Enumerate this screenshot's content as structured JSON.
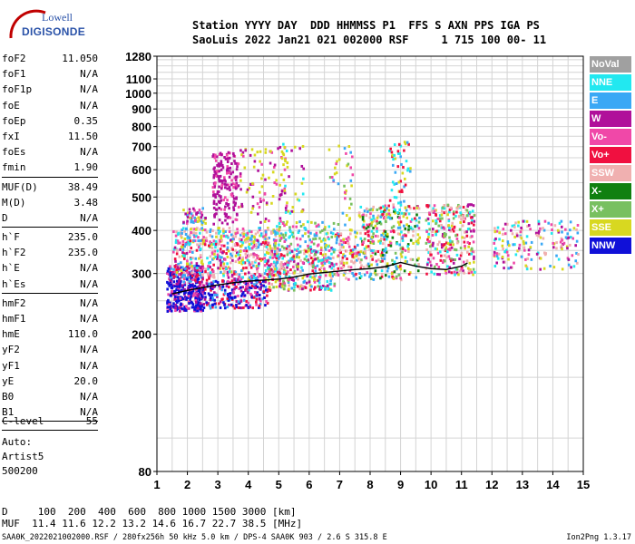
{
  "logo": {
    "line1": "Lowell",
    "line2": "DIGISONDE"
  },
  "header": {
    "line1": "Station YYYY DAY  DDD HHMMSS P1  FFS S AXN PPS IGA PS",
    "line2": "SaoLuis 2022 Jan21 021 002000 RSF     1 715 100 00- 11"
  },
  "params_group1": [
    {
      "label": "foF2",
      "value": "11.050"
    },
    {
      "label": "foF1",
      "value": "N/A"
    },
    {
      "label": "foF1p",
      "value": "N/A"
    },
    {
      "label": "foE",
      "value": "N/A"
    },
    {
      "label": "foEp",
      "value": "0.35"
    },
    {
      "label": "fxI",
      "value": "11.50"
    },
    {
      "label": "foEs",
      "value": "N/A"
    },
    {
      "label": "fmin",
      "value": "1.90"
    }
  ],
  "params_group2": [
    {
      "label": "MUF(D)",
      "value": "38.49"
    },
    {
      "label": "M(D)",
      "value": "3.48"
    },
    {
      "label": "D",
      "value": "N/A"
    }
  ],
  "params_group3": [
    {
      "label": "h`F",
      "value": "235.0"
    },
    {
      "label": "h`F2",
      "value": "235.0"
    },
    {
      "label": "h`E",
      "value": "N/A"
    },
    {
      "label": "h`Es",
      "value": "N/A"
    }
  ],
  "params_group4": [
    {
      "label": "hmF2",
      "value": "N/A"
    },
    {
      "label": "hmF1",
      "value": "N/A"
    },
    {
      "label": "hmE",
      "value": "110.0"
    },
    {
      "label": "yF2",
      "value": "N/A"
    },
    {
      "label": "yF1",
      "value": "N/A"
    },
    {
      "label": "yE",
      "value": "20.0"
    },
    {
      "label": "B0",
      "value": "N/A"
    },
    {
      "label": "B1",
      "value": "N/A"
    }
  ],
  "c_level": {
    "label": "C-level",
    "value": "55"
  },
  "auto": {
    "line1": "Auto:",
    "line2": "Artist5",
    "line3": "500200"
  },
  "legend": [
    {
      "label": "NoVal",
      "color": "#a0a0a0"
    },
    {
      "label": "NNE",
      "color": "#22e8f0"
    },
    {
      "label": "E",
      "color": "#3aa8f5"
    },
    {
      "label": "W",
      "color": "#b0109a"
    },
    {
      "label": "Vo-",
      "color": "#f048a8"
    },
    {
      "label": "Vo+",
      "color": "#f01040"
    },
    {
      "label": "SSW",
      "color": "#f0b0b0"
    },
    {
      "label": "X-",
      "color": "#108010"
    },
    {
      "label": "X+",
      "color": "#78c060"
    },
    {
      "label": "SSE",
      "color": "#d8d820"
    },
    {
      "label": "NNW",
      "color": "#1010d8"
    }
  ],
  "bottom": {
    "d_row": "D     100  200  400  600  800 1000 1500 3000 [km]",
    "muf_row": "MUF  11.4 11.6 12.2 13.2 14.6 16.7 22.7 38.5 [MHz]"
  },
  "footer": {
    "left": "SAA0K_2022021002000.RSF / 280fx256h 50 kHz 5.0 km / DPS-4 SAA0K 903 / 2.6 S 315.8 E",
    "right": "Ion2Png 1.3.17"
  },
  "chart_data": {
    "type": "scatter",
    "title": "",
    "xlabel": "",
    "ylabel": "",
    "xlim": [
      1,
      15
    ],
    "ylim": [
      80,
      1280
    ],
    "x_ticks": [
      1,
      2,
      3,
      4,
      5,
      6,
      7,
      8,
      9,
      10,
      11,
      12,
      13,
      14,
      15
    ],
    "y_ticks": [
      80,
      200,
      300,
      400,
      500,
      600,
      700,
      800,
      900,
      1000,
      1100,
      1280
    ],
    "y_scale": "log",
    "grid": true,
    "clusters": [
      {
        "x": [
          1.3,
          2.5
        ],
        "y": [
          235,
          285
        ],
        "n": 260,
        "colors": [
          10,
          10,
          10,
          3,
          4
        ]
      },
      {
        "x": [
          1.3,
          2.5
        ],
        "y": [
          285,
          320
        ],
        "n": 160,
        "colors": [
          10,
          4,
          3,
          5,
          2
        ]
      },
      {
        "x": [
          2.5,
          4.6
        ],
        "y": [
          240,
          290
        ],
        "n": 240,
        "colors": [
          10,
          10,
          3,
          4,
          5,
          2
        ]
      },
      {
        "x": [
          1.5,
          5.0
        ],
        "y": [
          290,
          380
        ],
        "n": 420,
        "colors": [
          4,
          3,
          5,
          9,
          2,
          1,
          6
        ]
      },
      {
        "x": [
          1.5,
          5.0
        ],
        "y": [
          380,
          410
        ],
        "n": 140,
        "colors": [
          9,
          2,
          1,
          4,
          6
        ]
      },
      {
        "x": [
          1.8,
          2.6
        ],
        "y": [
          420,
          470
        ],
        "n": 50,
        "colors": [
          3,
          4,
          9,
          2
        ]
      },
      {
        "x": [
          4.6,
          6.8
        ],
        "y": [
          270,
          360
        ],
        "n": 330,
        "colors": [
          4,
          9,
          3,
          5,
          6,
          2,
          1,
          8
        ]
      },
      {
        "x": [
          4.8,
          6.8
        ],
        "y": [
          360,
          430
        ],
        "n": 110,
        "colors": [
          9,
          2,
          4,
          8,
          1
        ]
      },
      {
        "x": [
          2.8,
          3.6
        ],
        "y": [
          420,
          680
        ],
        "n": 180,
        "colors": [
          3,
          4,
          3,
          3
        ]
      },
      {
        "x": [
          3.6,
          5.3
        ],
        "y": [
          420,
          700
        ],
        "n": 90,
        "colors": [
          3,
          4,
          9
        ]
      },
      {
        "x": [
          5.0,
          5.8
        ],
        "y": [
          450,
          720
        ],
        "n": 40,
        "colors": [
          3,
          1,
          9
        ]
      },
      {
        "x": [
          6.6,
          7.4
        ],
        "y": [
          400,
          720
        ],
        "n": 40,
        "colors": [
          9,
          8,
          2,
          4
        ]
      },
      {
        "x": [
          6.8,
          7.6
        ],
        "y": [
          290,
          400
        ],
        "n": 90,
        "colors": [
          4,
          5,
          9,
          2,
          6
        ]
      },
      {
        "x": [
          7.6,
          9.6
        ],
        "y": [
          290,
          480
        ],
        "n": 340,
        "colors": [
          4,
          5,
          9,
          2,
          6,
          1,
          7,
          8
        ]
      },
      {
        "x": [
          8.6,
          9.3
        ],
        "y": [
          480,
          730
        ],
        "n": 50,
        "colors": [
          9,
          2,
          1,
          5
        ]
      },
      {
        "x": [
          9.8,
          11.4
        ],
        "y": [
          300,
          480
        ],
        "n": 280,
        "colors": [
          4,
          5,
          9,
          8,
          3,
          6,
          1
        ]
      },
      {
        "x": [
          12.0,
          14.8
        ],
        "y": [
          310,
          430
        ],
        "n": 180,
        "colors": [
          4,
          3,
          2,
          1,
          9,
          6
        ]
      }
    ],
    "trace": {
      "name": "",
      "x": [
        1.5,
        2,
        2.5,
        3,
        3.5,
        4,
        4.5,
        5,
        5.5,
        6,
        6.5,
        7,
        7.5,
        8,
        8.5,
        9,
        9.5,
        10,
        10.5,
        11,
        11.2
      ],
      "y": [
        262,
        268,
        273,
        278,
        282,
        285,
        287,
        289,
        293,
        299,
        302,
        305,
        308,
        310,
        314,
        323,
        315,
        310,
        308,
        315,
        322
      ],
      "color": "#000000"
    }
  }
}
